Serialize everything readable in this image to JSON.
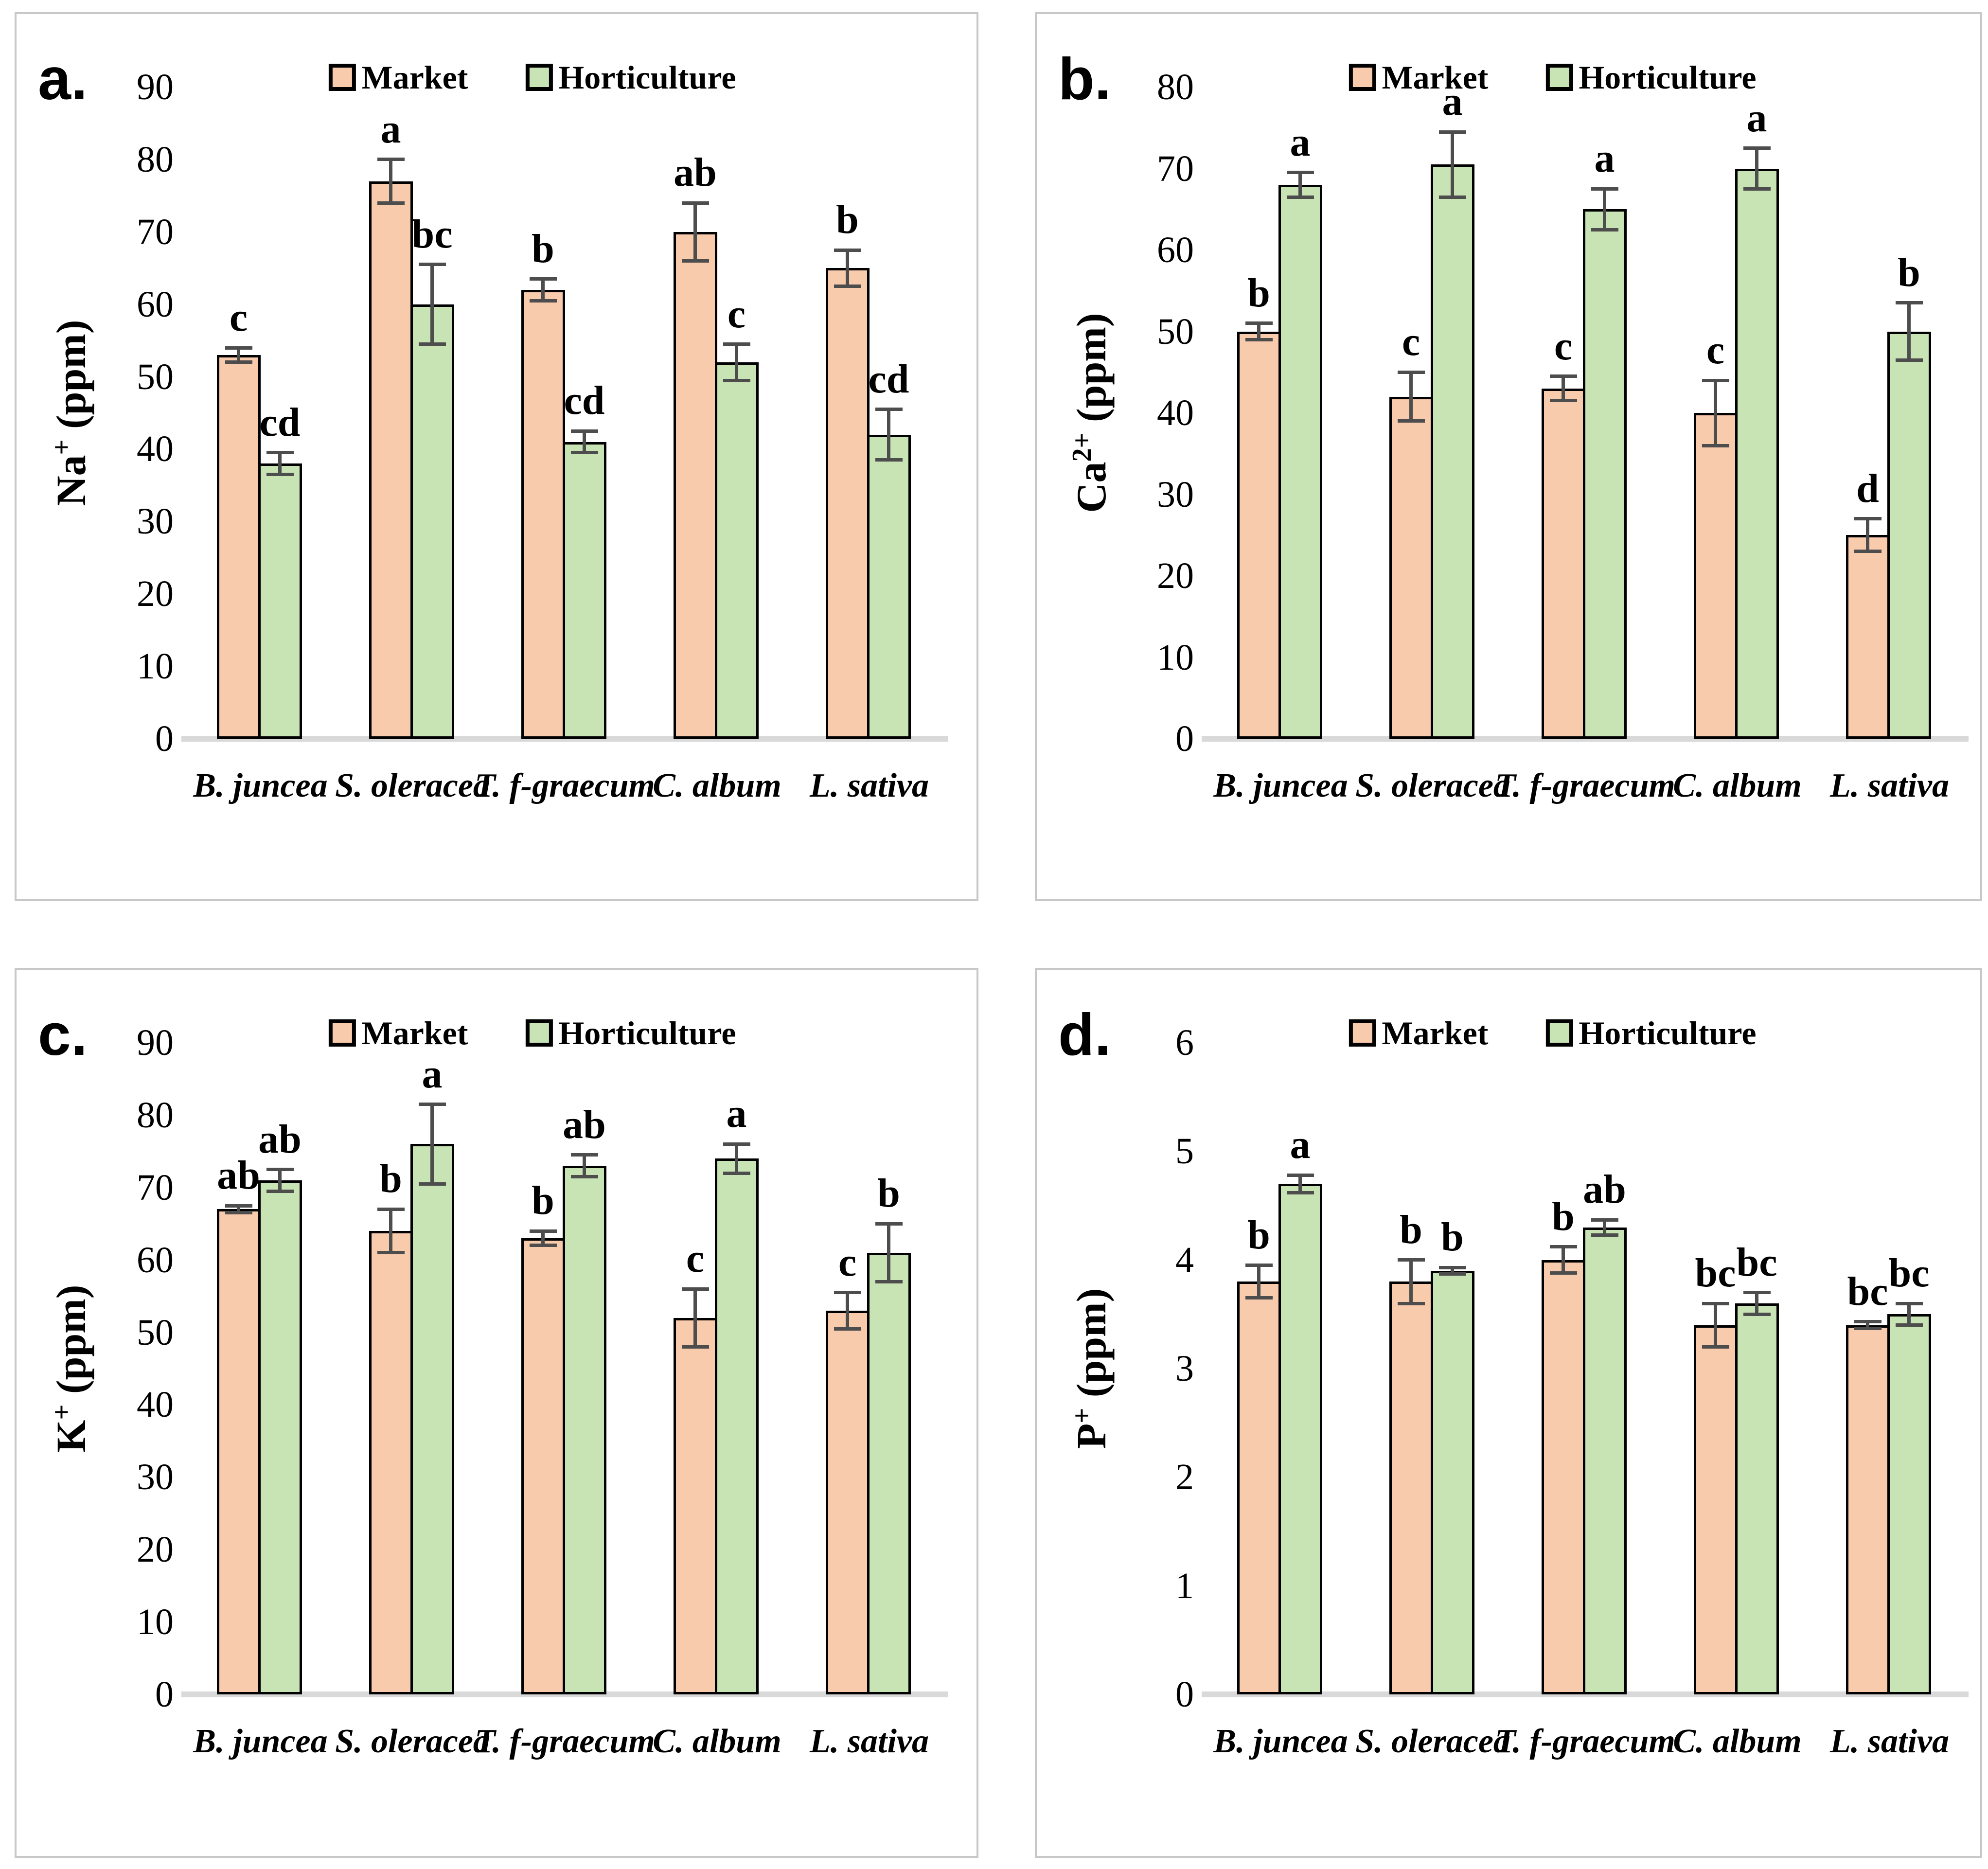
{
  "colors": {
    "market": "#F9CBAD",
    "horticulture": "#C8E3B4",
    "bar_border": "#000000",
    "error_bar": "#4D4D4D",
    "baseline": "#D9D9D9",
    "panel_frame": "#C8C8C8",
    "text": "#000000"
  },
  "chart_data": [
    {
      "type": "bar",
      "panel_letter": "a.",
      "ylabel": {
        "base": "Na",
        "sup": "+",
        "unit": " (ppm)"
      },
      "ylim": [
        0,
        90
      ],
      "ystep": 10,
      "grid": false,
      "legend_position": "top-center",
      "categories": [
        "B. juncea",
        "S. oleracea",
        "T. f-graecum",
        "C. album",
        "L. sativa"
      ],
      "series": [
        {
          "name": "Market",
          "color_key": "market",
          "values": [
            53,
            77,
            62,
            70,
            65
          ],
          "errors": [
            1,
            3,
            1.5,
            4,
            2.5
          ],
          "letters": [
            "c",
            "a",
            "b",
            "ab",
            "b"
          ]
        },
        {
          "name": "Horticulture",
          "color_key": "horticulture",
          "values": [
            38,
            60,
            41,
            52,
            42
          ],
          "errors": [
            1.5,
            5.5,
            1.5,
            2.5,
            3.5
          ],
          "letters": [
            "cd",
            "bc",
            "cd",
            "c",
            "cd"
          ]
        }
      ]
    },
    {
      "type": "bar",
      "panel_letter": "b.",
      "ylabel": {
        "base": "Ca",
        "sup": "2+",
        "unit": " (ppm)"
      },
      "ylim": [
        0,
        80
      ],
      "ystep": 10,
      "grid": false,
      "legend_position": "top-center",
      "categories": [
        "B. juncea",
        "S. oleracea",
        "T. f-graecum",
        "C. album",
        "L. sativa"
      ],
      "series": [
        {
          "name": "Market",
          "color_key": "market",
          "values": [
            50,
            42,
            43,
            40,
            25
          ],
          "errors": [
            1,
            3,
            1.5,
            4,
            2
          ],
          "letters": [
            "b",
            "c",
            "c",
            "c",
            "d"
          ]
        },
        {
          "name": "Horticulture",
          "color_key": "horticulture",
          "values": [
            68,
            70.5,
            65,
            70,
            50
          ],
          "errors": [
            1.5,
            4,
            2.5,
            2.5,
            3.5
          ],
          "letters": [
            "a",
            "a",
            "a",
            "a",
            "b"
          ]
        }
      ]
    },
    {
      "type": "bar",
      "panel_letter": "c.",
      "ylabel": {
        "base": "K",
        "sup": "+",
        "unit": " (ppm)"
      },
      "ylim": [
        0,
        90
      ],
      "ystep": 10,
      "grid": false,
      "legend_position": "top-center",
      "categories": [
        "B. juncea",
        "S. oleracea",
        "T. f-graecum",
        "C. album",
        "L. sativa"
      ],
      "series": [
        {
          "name": "Market",
          "color_key": "market",
          "values": [
            67,
            64,
            63,
            52,
            53
          ],
          "errors": [
            0.5,
            3,
            1,
            4,
            2.5
          ],
          "letters": [
            "ab",
            "b",
            "b",
            "c",
            "c"
          ]
        },
        {
          "name": "Horticulture",
          "color_key": "horticulture",
          "values": [
            71,
            76,
            73,
            74,
            61
          ],
          "errors": [
            1.5,
            5.5,
            1.5,
            2,
            4
          ],
          "letters": [
            "ab",
            "a",
            "ab",
            "a",
            "b"
          ]
        }
      ]
    },
    {
      "type": "bar",
      "panel_letter": "d.",
      "ylabel": {
        "base": "P",
        "sup": "+",
        "unit": " (ppm)"
      },
      "ylim": [
        0,
        6
      ],
      "ystep": 1,
      "grid": false,
      "legend_position": "top-center",
      "categories": [
        "B. juncea",
        "S. oleracea",
        "T. f-graecum",
        "C. album",
        "L. sativa"
      ],
      "series": [
        {
          "name": "Market",
          "color_key": "market",
          "values": [
            3.8,
            3.8,
            4.0,
            3.4,
            3.4
          ],
          "errors": [
            0.15,
            0.2,
            0.12,
            0.2,
            0.03
          ],
          "letters": [
            "b",
            "b",
            "b",
            "bc",
            "bc"
          ]
        },
        {
          "name": "Horticulture",
          "color_key": "horticulture",
          "values": [
            4.7,
            3.9,
            4.3,
            3.6,
            3.5
          ],
          "errors": [
            0.08,
            0.03,
            0.07,
            0.1,
            0.1
          ],
          "letters": [
            "a",
            "b",
            "ab",
            "bc",
            "bc"
          ]
        }
      ]
    }
  ]
}
